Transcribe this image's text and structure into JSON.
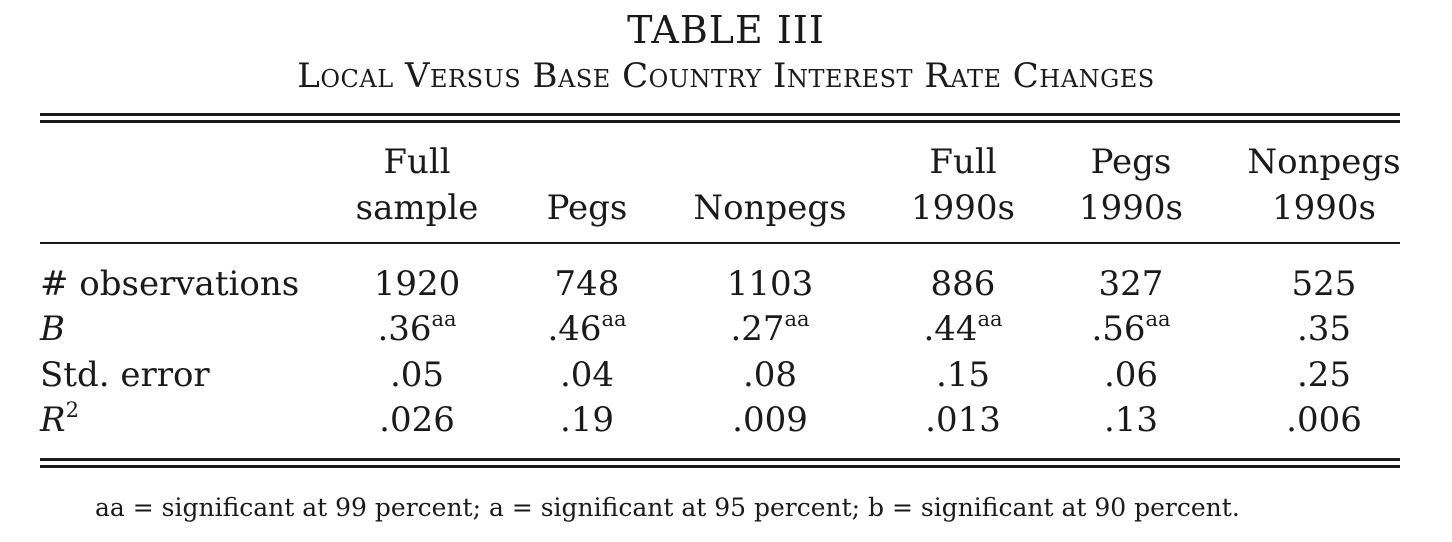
{
  "table": {
    "title": "TABLE III",
    "subtitle": "Local Versus Base Country Interest Rate Changes",
    "columns": [
      {
        "line1": "Full",
        "line2": "sample"
      },
      {
        "line1": "",
        "line2": "Pegs"
      },
      {
        "line1": "",
        "line2": "Nonpegs"
      },
      {
        "line1": "Full",
        "line2": "1990s"
      },
      {
        "line1": "Pegs",
        "line2": "1990s"
      },
      {
        "line1": "Nonpegs",
        "line2": "1990s"
      }
    ],
    "rows": [
      {
        "label": "# observations",
        "label_sup": "",
        "cells": [
          {
            "value": "1920",
            "sup": ""
          },
          {
            "value": "748",
            "sup": ""
          },
          {
            "value": "1103",
            "sup": ""
          },
          {
            "value": "886",
            "sup": ""
          },
          {
            "value": "327",
            "sup": ""
          },
          {
            "value": "525",
            "sup": ""
          }
        ]
      },
      {
        "label": "B",
        "label_sup": "",
        "cells": [
          {
            "value": ".36",
            "sup": "aa"
          },
          {
            "value": ".46",
            "sup": "aa"
          },
          {
            "value": ".27",
            "sup": "aa"
          },
          {
            "value": ".44",
            "sup": "aa"
          },
          {
            "value": ".56",
            "sup": "aa"
          },
          {
            "value": ".35",
            "sup": ""
          }
        ]
      },
      {
        "label": "Std. error",
        "label_sup": "",
        "cells": [
          {
            "value": ".05",
            "sup": ""
          },
          {
            "value": ".04",
            "sup": ""
          },
          {
            "value": ".08",
            "sup": ""
          },
          {
            "value": ".15",
            "sup": ""
          },
          {
            "value": ".06",
            "sup": ""
          },
          {
            "value": ".25",
            "sup": ""
          }
        ]
      },
      {
        "label": "R",
        "label_sup": "2",
        "cells": [
          {
            "value": ".026",
            "sup": ""
          },
          {
            "value": ".19",
            "sup": ""
          },
          {
            "value": ".009",
            "sup": ""
          },
          {
            "value": ".013",
            "sup": ""
          },
          {
            "value": ".13",
            "sup": ""
          },
          {
            "value": ".006",
            "sup": ""
          }
        ]
      }
    ],
    "footnote": "aa = significant at 99 percent; a = significant at 95 percent; b = significant at 90 percent."
  }
}
